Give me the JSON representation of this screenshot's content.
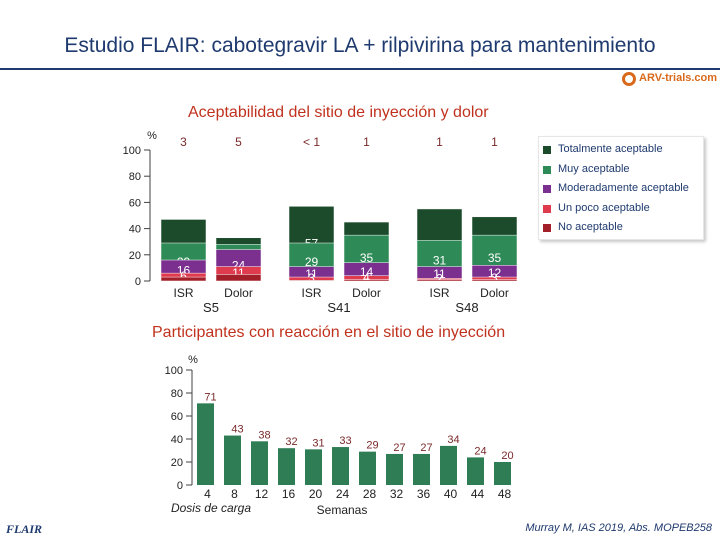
{
  "slide": {
    "title": "Estudio FLAIR: cabotegravir LA + rilpivirina para mantenimiento",
    "logo_text": "ARV-trials.com",
    "footer_left": "FLAIR",
    "footer_right": "Murray M, IAS 2019, Abs. MOPEB258"
  },
  "colors": {
    "title": "#1f3a6e",
    "section_title": "#c0321e",
    "totalmente": "#1c4b2c",
    "muy": "#2e8b57",
    "moderadamente": "#7b2f8f",
    "poco": "#e03a4e",
    "no": "#a3202a",
    "bars2": "#2e7d55",
    "bar_value_text": "#7a2a2a"
  },
  "chart_data": [
    {
      "type": "bar",
      "stacked": true,
      "title": "Aceptabilidad del sitio de inyección y dolor",
      "ylabel": "%",
      "ylim": [
        0,
        100
      ],
      "yticks": [
        "0",
        "20",
        "40",
        "60",
        "80",
        "100"
      ],
      "categories": [
        "ISR",
        "Dolor",
        "ISR",
        "Dolor",
        "ISR",
        "Dolor"
      ],
      "groups": [
        "S5",
        "S41",
        "S48"
      ],
      "series": [
        {
          "name": "Totalmente aceptable",
          "color_key": "totalmente",
          "values": [
            47,
            33,
            57,
            45,
            55,
            49
          ],
          "labels": [
            "47",
            "33",
            "57",
            "45",
            "55",
            "49"
          ]
        },
        {
          "name": "Muy aceptable",
          "color_key": "muy",
          "values": [
            29,
            28,
            29,
            35,
            31,
            35
          ],
          "labels": [
            "29",
            "28",
            "29",
            "35",
            "31",
            "35"
          ]
        },
        {
          "name": "Moderadamente aceptable",
          "color_key": "moderadamente",
          "values": [
            16,
            24,
            11,
            14,
            11,
            12
          ],
          "labels": [
            "16",
            "24",
            "11",
            "14",
            "11",
            "12"
          ]
        },
        {
          "name": "Un poco aceptable",
          "color_key": "poco",
          "values": [
            6,
            11,
            3,
            4,
            2,
            3
          ],
          "labels": [
            "6",
            "11",
            "3",
            "4",
            "2",
            "3"
          ]
        },
        {
          "name": "No aceptable",
          "color_key": "no",
          "values": [
            3,
            5,
            0.5,
            1,
            1,
            1
          ],
          "labels": [
            "3",
            "5",
            "< 1",
            "1",
            "1",
            "1"
          ]
        }
      ],
      "legend_position": "right"
    },
    {
      "type": "bar",
      "title": "Participantes con reacción en el sitio de inyección",
      "ylabel": "%",
      "ylim": [
        0,
        100
      ],
      "yticks": [
        "0",
        "20",
        "40",
        "60",
        "80",
        "100"
      ],
      "x": [
        "4",
        "8",
        "12",
        "16",
        "20",
        "24",
        "28",
        "32",
        "36",
        "40",
        "44",
        "48"
      ],
      "values": [
        71,
        43,
        38,
        32,
        31,
        33,
        29,
        27,
        27,
        34,
        24,
        20
      ],
      "first_xlabel": "Dosis de carga",
      "xlabel": "Semanas"
    }
  ]
}
